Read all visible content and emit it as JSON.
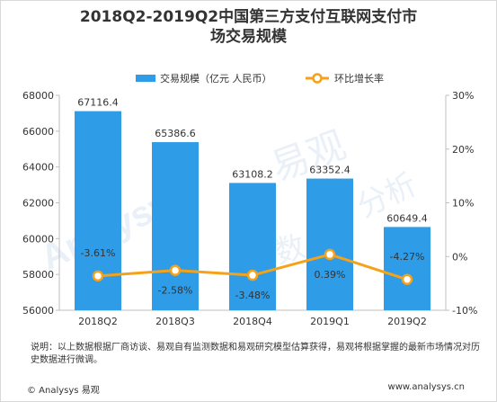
{
  "title_line1": "2018Q2-2019Q2中国第三方支付互联网支付市",
  "title_line2": "场交易规模",
  "note": "说明：以上数据根据厂商访谈、易观自有监测数据和易观研究模型估算获得，易观将根据掌握的最新市场情况对历史数据进行微调。",
  "footer_left": "© Analysys 易观",
  "footer_right": "www.analysys.cn",
  "watermark": {
    "text_cn": "易观",
    "text_cn2": "分析",
    "text_en": "Analysys",
    "text_cn3": "数"
  },
  "colors": {
    "bar": "#2e9ce6",
    "line": "#f5a21b",
    "marker_fill": "#ffffff",
    "text": "#333333"
  },
  "chart_data": {
    "type": "bar+line",
    "categories": [
      "2018Q2",
      "2018Q3",
      "2018Q4",
      "2019Q1",
      "2019Q2"
    ],
    "series": [
      {
        "name": "交易规模（亿元 人民币）",
        "type": "bar",
        "axis": "left",
        "values": [
          67116.4,
          65386.6,
          63108.2,
          63352.4,
          60649.4
        ],
        "labels": [
          "67116.4",
          "65386.6",
          "63108.2",
          "63352.4",
          "60649.4"
        ]
      },
      {
        "name": "环比增长率",
        "type": "line",
        "axis": "right",
        "values": [
          -3.61,
          -2.58,
          -3.48,
          0.39,
          -4.27
        ],
        "labels": [
          "-3.61%",
          "-2.58%",
          "-3.48%",
          "0.39%",
          "-4.27%"
        ]
      }
    ],
    "y_left": {
      "min": 56000,
      "max": 68000,
      "ticks": [
        56000,
        58000,
        60000,
        62000,
        64000,
        66000,
        68000
      ]
    },
    "y_right": {
      "min": -10,
      "max": 30,
      "ticks": [
        -10,
        0,
        10,
        20,
        30
      ],
      "tick_labels": [
        "-10%",
        "0%",
        "10%",
        "20%",
        "30%"
      ]
    },
    "legend_position": "top",
    "grid": false
  }
}
